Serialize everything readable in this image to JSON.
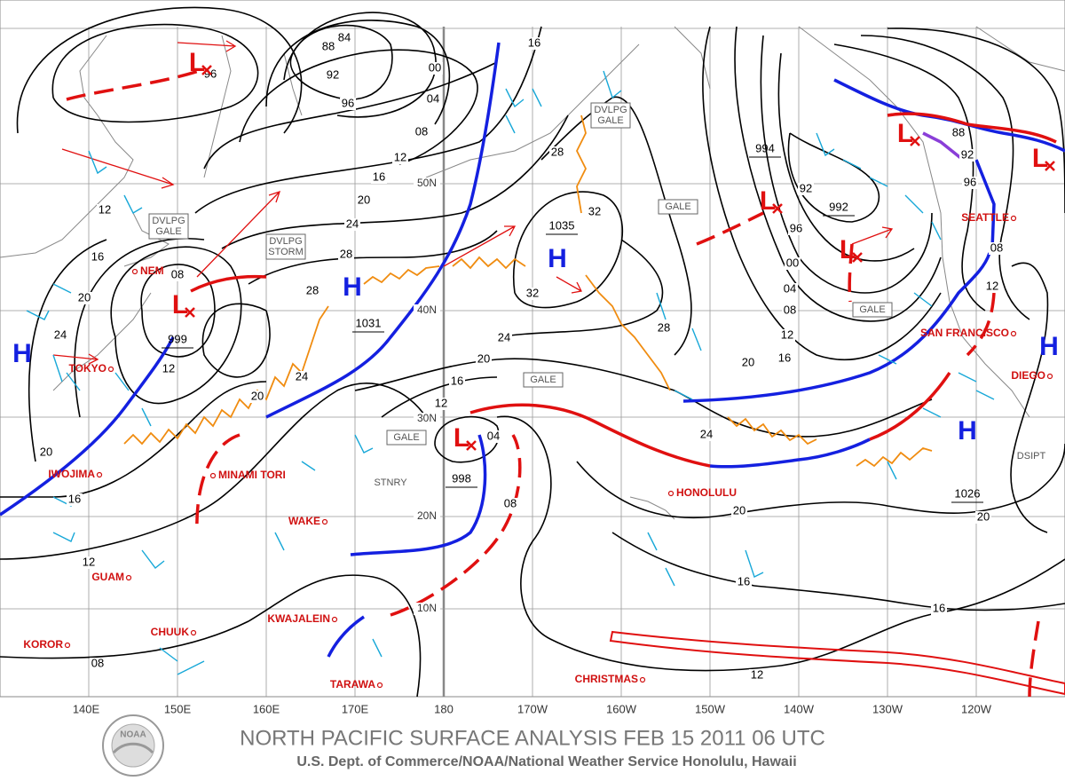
{
  "footer": {
    "title": "NORTH PACIFIC SURFACE ANALYSIS FEB 15 2011 06 UTC",
    "subtitle": "U.S. Dept. of Commerce/NOAA/National Weather Service Honolulu, Hawaii",
    "logo": "NOAA"
  },
  "longitudes": [
    "140E",
    "150E",
    "160E",
    "170E",
    "180",
    "170W",
    "160W",
    "150W",
    "140W",
    "130W",
    "120W"
  ],
  "latitudes": [
    "50N",
    "40N",
    "30N",
    "20N",
    "10N"
  ],
  "places": [
    "NEM",
    "TOKYO",
    "IWOJIMA",
    "MINAMI TORI",
    "WAKE",
    "GUAM",
    "KWAJALEIN",
    "CHUUK",
    "KOROR",
    "TARAWA",
    "CHRISTMAS",
    "HONOLULU",
    "SAN FRANCISCO",
    "SEATTLE",
    "DIEGO"
  ],
  "pressure_centers": [
    {
      "letter": "L"
    },
    {
      "letter": "L",
      "value": "999"
    },
    {
      "letter": "H"
    },
    {
      "letter": "H",
      "value": "1031"
    },
    {
      "letter": "H",
      "value": "1035"
    },
    {
      "letter": "L",
      "value": "998"
    },
    {
      "letter": "L",
      "value": "994"
    },
    {
      "letter": "L",
      "value": "992"
    },
    {
      "letter": "L"
    },
    {
      "letter": "L"
    },
    {
      "letter": "H",
      "value": "1026"
    },
    {
      "letter": "H"
    }
  ],
  "boxed_labels": [
    {
      "lines": [
        "DVLPG",
        "GALE"
      ]
    },
    {
      "lines": [
        "DVLPG",
        "STORM"
      ]
    },
    {
      "lines": [
        "DVLPG",
        "GALE"
      ]
    },
    {
      "lines": [
        "GALE"
      ]
    },
    {
      "lines": [
        "GALE"
      ]
    },
    {
      "lines": [
        "GALE"
      ]
    },
    {
      "lines": [
        "GALE"
      ]
    }
  ],
  "front_labels": [
    "STNRY",
    "DSIPT"
  ],
  "isobar_labels": [
    "88",
    "84",
    "92",
    "96",
    "00",
    "04",
    "08",
    "12",
    "16",
    "20",
    "24",
    "28",
    "28",
    "24",
    "20",
    "16",
    "20",
    "24",
    "12",
    "08",
    "12",
    "20",
    "16",
    "12",
    "08",
    "16",
    "28",
    "32",
    "32",
    "24",
    "20",
    "16",
    "12",
    "04",
    "08",
    "28",
    "20",
    "16",
    "12",
    "08",
    "04",
    "00",
    "96",
    "92",
    "24",
    "20",
    "16",
    "16",
    "20",
    "12",
    "12",
    "08",
    "96",
    "92",
    "88",
    "96"
  ]
}
